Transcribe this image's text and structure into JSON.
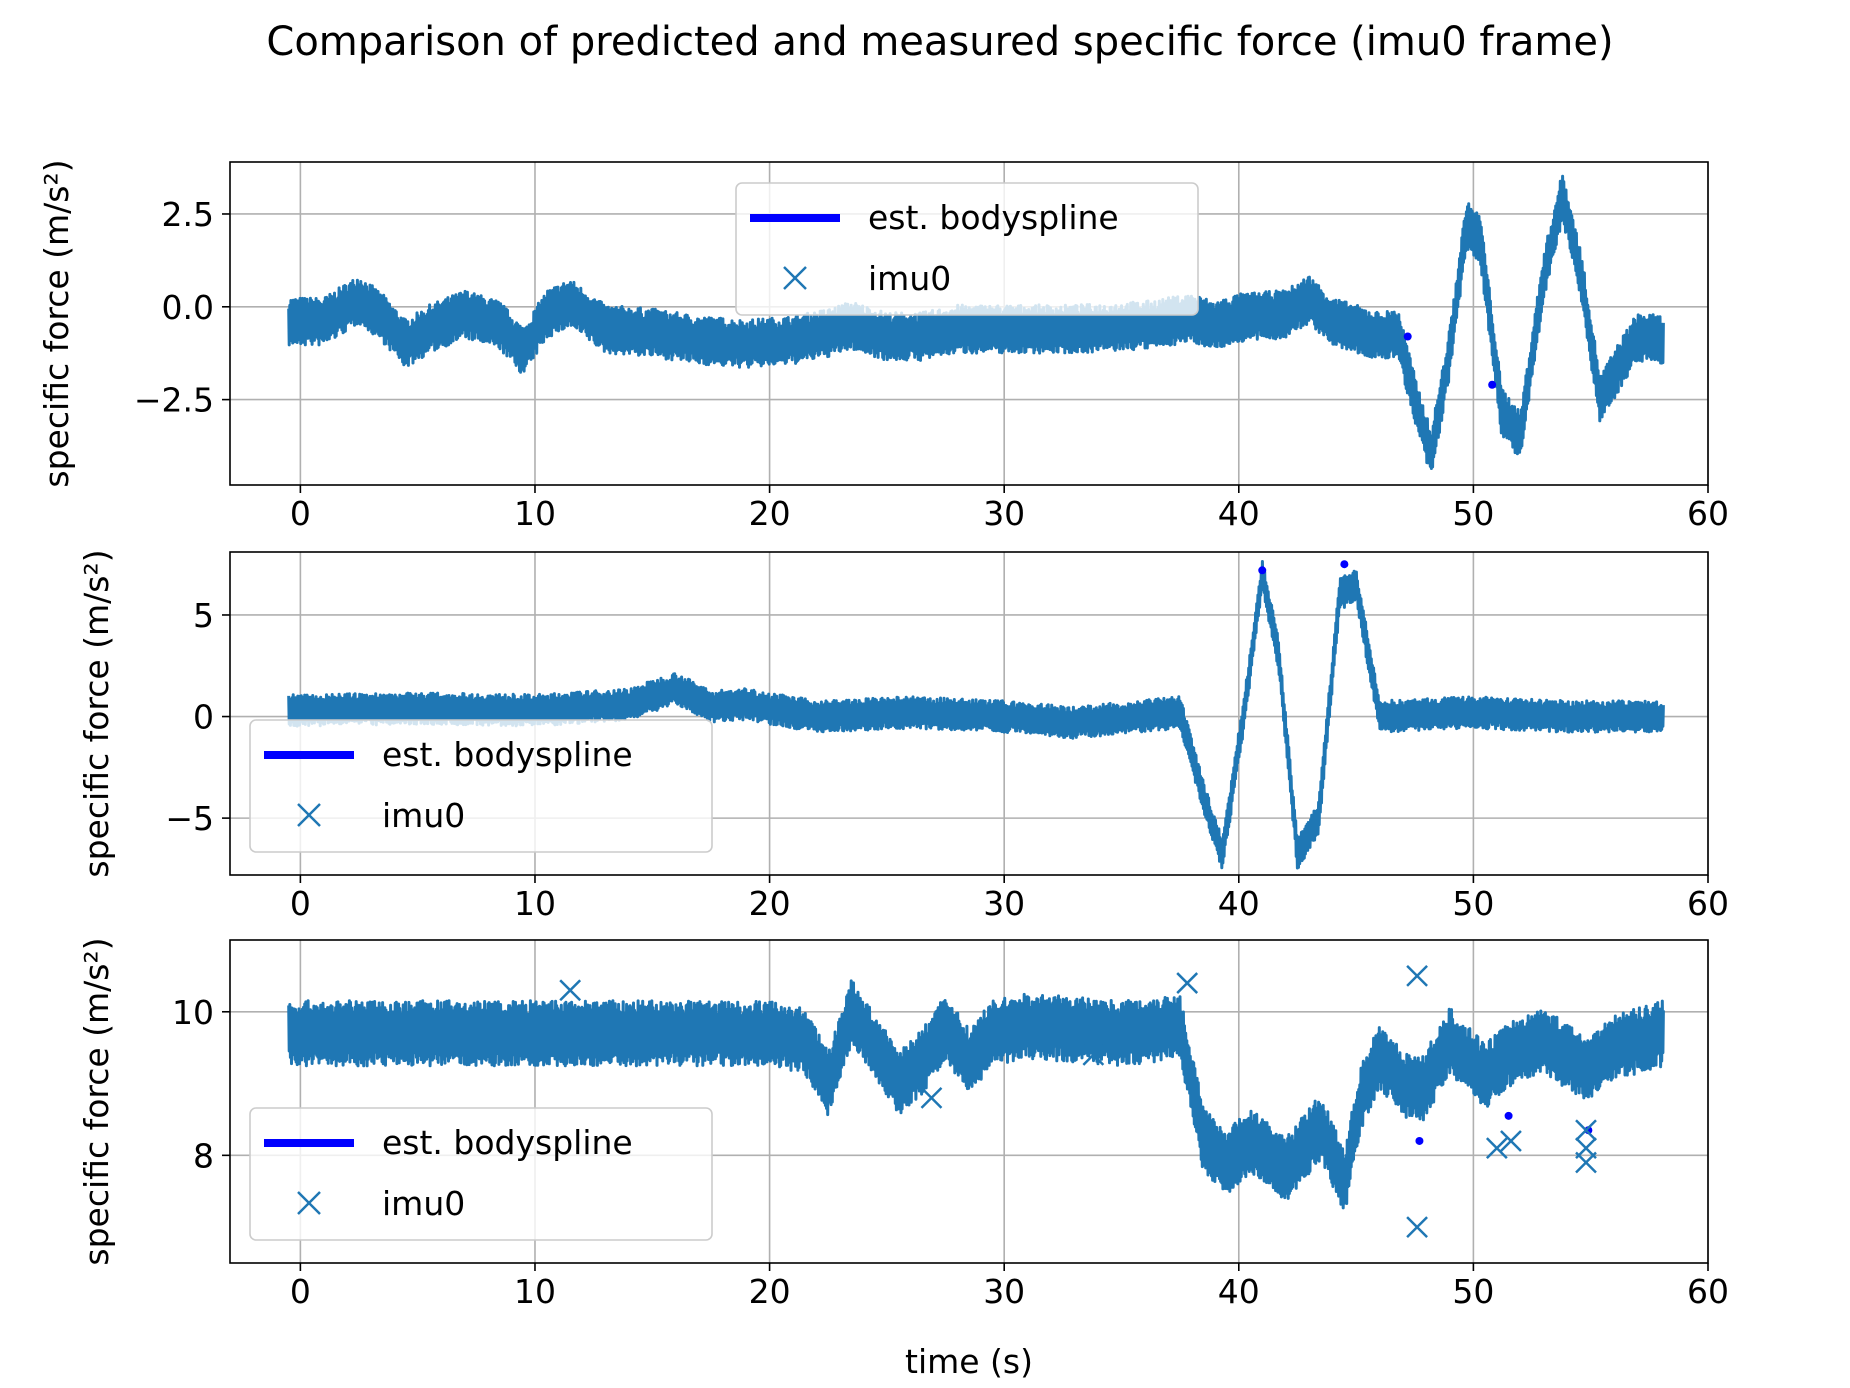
{
  "figure_title": "Comparison of predicted and measured specific force (imu0 frame)",
  "colors": {
    "imu": "#1f77b4",
    "spline": "#0000ff",
    "grid": "#b0b0b0"
  },
  "chart_data": [
    {
      "type": "line",
      "ylabel": "specific force (m/s²)",
      "xlabel": "",
      "xlim": [
        -3,
        60
      ],
      "ylim": [
        -4.8,
        3.9
      ],
      "xticks": [
        0,
        10,
        20,
        30,
        40,
        50,
        60
      ],
      "xtick_labels": [
        "0",
        "10",
        "20",
        "30",
        "40",
        "50",
        "60"
      ],
      "yticks": [
        2.5,
        0,
        -2.5
      ],
      "ytick_labels": [
        "2.5",
        "0.0",
        "−2.5"
      ],
      "legend": {
        "position": "upper-center",
        "entries": [
          "est. bodyspline",
          "imu0"
        ]
      },
      "grid": true,
      "series": [
        {
          "name": "imu0",
          "marker": "x",
          "noise_amp": 0.5,
          "trend_t": [
            -0.5,
            1,
            2.5,
            3.5,
            4.5,
            5.5,
            7,
            8.5,
            9.5,
            10.5,
            11.5,
            13,
            15,
            17,
            19,
            21,
            22.5,
            23.5,
            25,
            26.5,
            28,
            30,
            33,
            36,
            38,
            39,
            40,
            42,
            43,
            44,
            45,
            46,
            46.8,
            47.5,
            48.2,
            49,
            49.7,
            50.3,
            51.2,
            52,
            53,
            53.8,
            54.6,
            55.4,
            56.3,
            57,
            58.1
          ],
          "trend_v": [
            -0.4,
            -0.4,
            0.2,
            -0.3,
            -1.0,
            -0.6,
            -0.2,
            -0.5,
            -1.2,
            -0.2,
            0.1,
            -0.6,
            -0.7,
            -0.9,
            -1.0,
            -0.9,
            -0.7,
            -0.5,
            -0.8,
            -0.8,
            -0.6,
            -0.6,
            -0.6,
            -0.5,
            -0.3,
            -0.5,
            -0.3,
            -0.2,
            0.2,
            -0.4,
            -0.6,
            -0.8,
            -0.7,
            -2.5,
            -4.0,
            -1.2,
            2.2,
            1.8,
            -2.8,
            -3.5,
            0.8,
            3.0,
            0.8,
            -2.5,
            -1.5,
            -0.8,
            -0.9
          ],
          "outliers": []
        },
        {
          "name": "est. bodyspline",
          "sparse_t": [
            47.2,
            50.8
          ],
          "sparse_v": [
            -0.8,
            -2.1
          ]
        }
      ]
    },
    {
      "type": "line",
      "ylabel": "specific force (m/s²)",
      "xlabel": "",
      "xlim": [
        -3,
        60
      ],
      "ylim": [
        -7.8,
        8.1
      ],
      "xticks": [
        0,
        10,
        20,
        30,
        40,
        50,
        60
      ],
      "xtick_labels": [
        "0",
        "10",
        "20",
        "30",
        "40",
        "50",
        "60"
      ],
      "yticks": [
        5,
        0,
        -5
      ],
      "ytick_labels": [
        "5",
        "0",
        "−5"
      ],
      "legend": {
        "position": "lower-left",
        "entries": [
          "est. bodyspline",
          "imu0"
        ]
      },
      "grid": true,
      "series": [
        {
          "name": "imu0",
          "marker": "x",
          "noise_amp": 0.6,
          "trend_t": [
            -0.5,
            5,
            10,
            14,
            16,
            17.5,
            19,
            20.5,
            22,
            26,
            30,
            33,
            37.5,
            38.5,
            39.3,
            40.2,
            41,
            41.7,
            42.5,
            43.4,
            44.3,
            45,
            46,
            50,
            54,
            58.1
          ],
          "trend_v": [
            0.3,
            0.4,
            0.3,
            0.6,
            1.4,
            0.5,
            0.6,
            0.3,
            0.0,
            0.2,
            0.0,
            -0.3,
            0.2,
            -4.0,
            -6.8,
            0.0,
            7.0,
            3.0,
            -6.8,
            -5.0,
            6.0,
            6.5,
            0.0,
            0.2,
            0.0,
            0.0
          ],
          "outliers": []
        },
        {
          "name": "est. bodyspline",
          "sparse_t": [
            41,
            44.5
          ],
          "sparse_v": [
            7.2,
            7.5
          ]
        }
      ]
    },
    {
      "type": "line",
      "ylabel": "specific force (m/s²)",
      "xlabel": "time (s)",
      "xlim": [
        -3,
        60
      ],
      "ylim": [
        6.5,
        11.0
      ],
      "xticks": [
        0,
        10,
        20,
        30,
        40,
        50,
        60
      ],
      "xtick_labels": [
        "0",
        "10",
        "20",
        "30",
        "40",
        "50",
        "60"
      ],
      "yticks": [
        10,
        8
      ],
      "ytick_labels": [
        "10",
        "8"
      ],
      "legend": {
        "position": "lower-left",
        "entries": [
          "est. bodyspline",
          "imu0"
        ]
      },
      "grid": true,
      "series": [
        {
          "name": "imu0",
          "marker": "x",
          "noise_amp": 0.35,
          "trend_t": [
            -0.5,
            5,
            10,
            15,
            20,
            21.5,
            22.5,
            23.5,
            24.5,
            25.5,
            26.5,
            27.5,
            28.5,
            29.5,
            31,
            35,
            37.5,
            38.5,
            39.5,
            40.5,
            42,
            43.5,
            44.5,
            45.2,
            46,
            47,
            47.8,
            49,
            50.5,
            51.5,
            53,
            54.8,
            56,
            58.1
          ],
          "trend_v": [
            9.7,
            9.7,
            9.7,
            9.7,
            9.7,
            9.6,
            9.0,
            10.0,
            9.5,
            9.0,
            9.3,
            9.8,
            9.3,
            9.7,
            9.8,
            9.7,
            9.8,
            8.2,
            7.9,
            8.2,
            7.8,
            8.4,
            7.6,
            8.8,
            9.4,
            9.0,
            8.9,
            9.6,
            9.1,
            9.4,
            9.6,
            9.2,
            9.5,
            9.7
          ],
          "outliers": [
            [
              11.5,
              10.3
            ],
            [
              26.9,
              8.8
            ],
            [
              33.8,
              9.4
            ],
            [
              37.8,
              10.4
            ],
            [
              47.6,
              10.5
            ],
            [
              47.6,
              7.0
            ],
            [
              51,
              8.1
            ],
            [
              51.6,
              8.2
            ],
            [
              54.8,
              8.1
            ],
            [
              54.8,
              7.9
            ],
            [
              54.8,
              8.35
            ]
          ]
        },
        {
          "name": "est. bodyspline",
          "sparse_t": [
            47.7,
            51.5,
            54.9
          ],
          "sparse_v": [
            8.2,
            8.55,
            8.35
          ]
        }
      ]
    }
  ]
}
